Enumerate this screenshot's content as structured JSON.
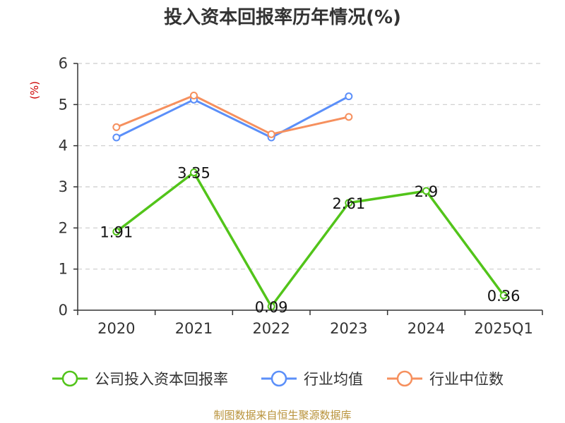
{
  "chart_data": {
    "type": "line",
    "title": "投入资本回报率历年情况(%)",
    "ylabel": "(%)",
    "categories": [
      "2020",
      "2021",
      "2022",
      "2023",
      "2024",
      "2025Q1"
    ],
    "ylim": [
      0,
      6
    ],
    "yticks": [
      0,
      1,
      2,
      3,
      4,
      5,
      6
    ],
    "grid": true,
    "legend_position": "bottom",
    "series": [
      {
        "name": "公司投入资本回报率",
        "color": "#52c41a",
        "values": [
          1.91,
          3.35,
          0.09,
          2.61,
          2.9,
          0.36
        ],
        "labels": [
          "1.91",
          "3.35",
          "0.09",
          "2.61",
          "2.9",
          "0.36"
        ]
      },
      {
        "name": "行业均值",
        "color": "#5b8ff9",
        "values": [
          4.2,
          5.12,
          4.2,
          5.2,
          null,
          null
        ]
      },
      {
        "name": "行业中位数",
        "color": "#f6905e",
        "values": [
          4.45,
          5.22,
          4.28,
          4.7,
          null,
          null
        ]
      }
    ]
  },
  "source": "制图数据来自恒生聚源数据库"
}
